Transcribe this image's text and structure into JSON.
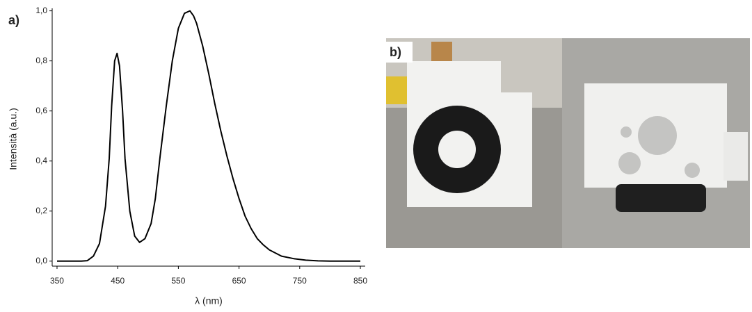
{
  "chart_data": {
    "type": "line",
    "panel_label": "a)",
    "xlabel": "λ (nm)",
    "ylabel": "Intensità (a.u.)",
    "x": [
      350,
      370,
      390,
      400,
      410,
      420,
      430,
      436,
      440,
      445,
      449,
      453,
      458,
      462,
      470,
      478,
      486,
      495,
      505,
      512,
      520,
      530,
      540,
      550,
      560,
      569,
      575,
      580,
      590,
      600,
      610,
      620,
      630,
      640,
      650,
      660,
      670,
      680,
      690,
      700,
      720,
      740,
      760,
      780,
      800,
      850
    ],
    "values": [
      0,
      0,
      0,
      0.002,
      0.02,
      0.07,
      0.22,
      0.41,
      0.62,
      0.8,
      0.83,
      0.78,
      0.6,
      0.41,
      0.2,
      0.1,
      0.075,
      0.09,
      0.15,
      0.25,
      0.42,
      0.62,
      0.8,
      0.93,
      0.99,
      1.0,
      0.98,
      0.95,
      0.86,
      0.75,
      0.63,
      0.52,
      0.42,
      0.33,
      0.25,
      0.18,
      0.13,
      0.09,
      0.065,
      0.045,
      0.02,
      0.01,
      0.004,
      0.001,
      0,
      0
    ],
    "color": "#000000",
    "xlim": [
      342,
      858
    ],
    "ylim": [
      -0.02,
      1.01
    ],
    "xticks": [
      350,
      450,
      550,
      650,
      750,
      850
    ],
    "yticks": [
      {
        "value": 0,
        "label": "0,0"
      },
      {
        "value": 0.2,
        "label": "0,2"
      },
      {
        "value": 0.4,
        "label": "0,4"
      },
      {
        "value": 0.6,
        "label": "0,6"
      },
      {
        "value": 0.8,
        "label": "0,8"
      },
      {
        "value": 1.0,
        "label": "1,0"
      }
    ],
    "grid": false
  },
  "photo_panel": {
    "label": "b)"
  }
}
